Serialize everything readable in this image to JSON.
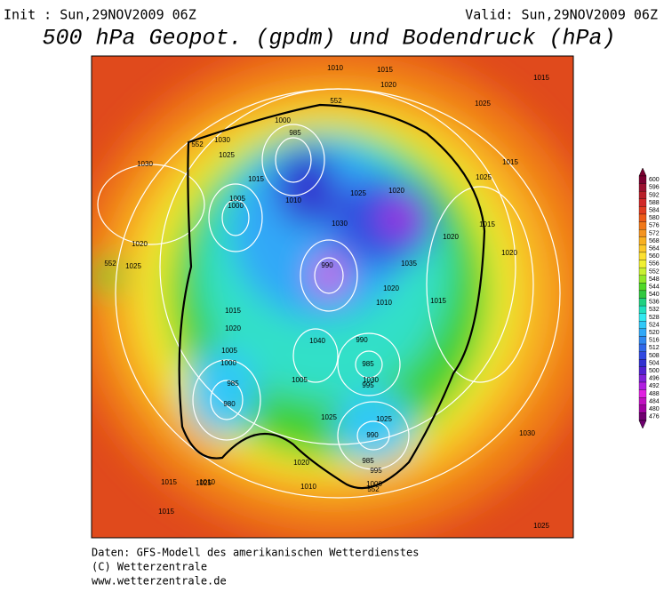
{
  "header": {
    "init": "Init : Sun,29NOV2009 06Z",
    "valid": "Valid: Sun,29NOV2009 06Z",
    "title": "500 hPa Geopot. (gpdm) und Bodendruck (hPa)"
  },
  "colorbar": {
    "values": [
      600,
      596,
      592,
      588,
      584,
      580,
      576,
      572,
      568,
      564,
      560,
      556,
      552,
      548,
      544,
      540,
      536,
      532,
      528,
      524,
      520,
      516,
      512,
      508,
      504,
      500,
      496,
      492,
      488,
      484,
      480,
      476
    ],
    "colors": [
      "#7a0030",
      "#9a1030",
      "#b8202a",
      "#d02828",
      "#e03c20",
      "#ec5a18",
      "#f07818",
      "#f49420",
      "#f8b020",
      "#fcc828",
      "#fce030",
      "#f0f030",
      "#c8f030",
      "#90e828",
      "#50d828",
      "#30c840",
      "#20d080",
      "#20e0c0",
      "#30e8f0",
      "#30c8f8",
      "#30a8f8",
      "#3088f0",
      "#3068e8",
      "#3048e0",
      "#3030d0",
      "#5020d0",
      "#8020d8",
      "#b020e0",
      "#e020e0",
      "#c010c0",
      "#a000a0",
      "#700070"
    ]
  },
  "map": {
    "labels": [
      "1010",
      "1015",
      "1020",
      "1015",
      "1025",
      "552",
      "1030",
      "552",
      "1025",
      "1030",
      "1000",
      "985",
      "1010",
      "1015",
      "1020",
      "1025",
      "1030",
      "990",
      "1035",
      "1020",
      "1015",
      "1005",
      "1000",
      "1040",
      "990",
      "985",
      "995",
      "1010",
      "1015",
      "1020",
      "1025",
      "1030",
      "1025",
      "990",
      "985",
      "995",
      "1000",
      "1005",
      "1010",
      "1025",
      "1020",
      "1015",
      "1030",
      "1025",
      "552",
      "1020",
      "1015",
      "1005",
      "1000",
      "985",
      "980",
      "1010",
      "1015",
      "1020",
      "1025",
      "552",
      "1015",
      "1020",
      "1025"
    ]
  },
  "footer": {
    "line1": "Daten: GFS-Modell des amerikanischen Wetterdienstes",
    "line2": "(C) Wetterzentrale",
    "line3": "www.wetterzentrale.de"
  }
}
